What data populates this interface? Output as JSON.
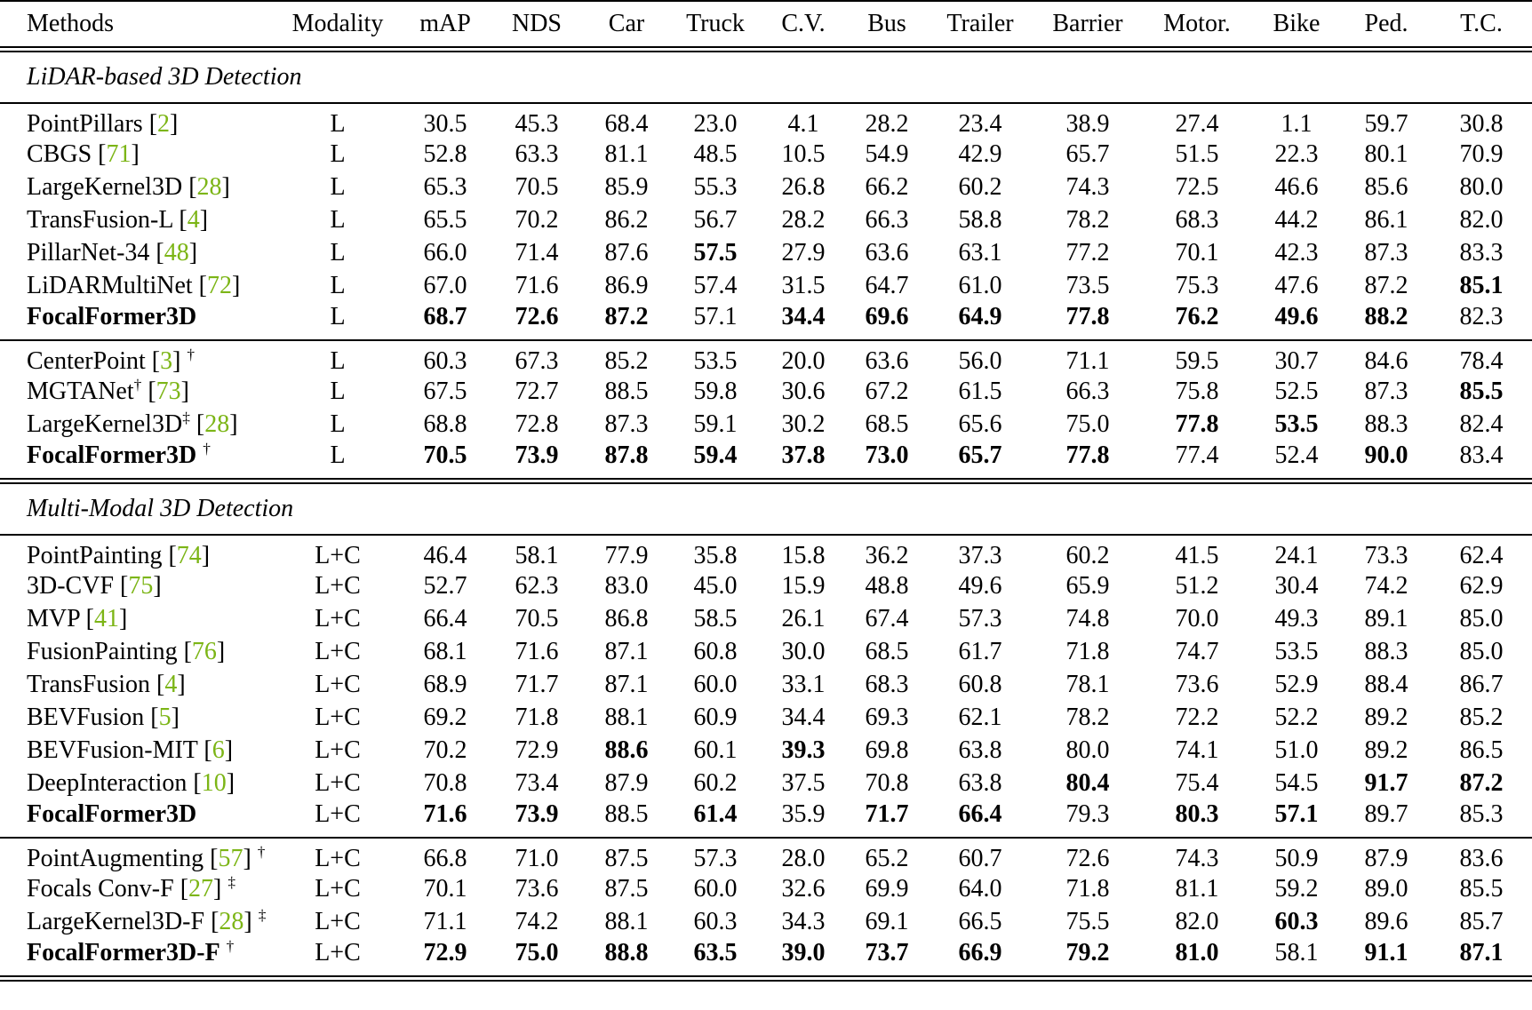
{
  "colors": {
    "citation": "#7CB516"
  },
  "table": {
    "columns": [
      "Methods",
      "Modality",
      "mAP",
      "NDS",
      "Car",
      "Truck",
      "C.V.",
      "Bus",
      "Trailer",
      "Barrier",
      "Motor.",
      "Bike",
      "Ped.",
      "T.C."
    ],
    "sections": [
      {
        "title": "LiDAR-based 3D Detection",
        "groups": [
          {
            "rows": [
              {
                "name": "PointPillars",
                "cite": "2",
                "modality": "L",
                "values": [
                  "30.5",
                  "45.3",
                  "68.4",
                  "23.0",
                  "4.1",
                  "28.2",
                  "23.4",
                  "38.9",
                  "27.4",
                  "1.1",
                  "59.7",
                  "30.8"
                ],
                "bold": []
              },
              {
                "name": "CBGS",
                "cite": "71",
                "modality": "L",
                "values": [
                  "52.8",
                  "63.3",
                  "81.1",
                  "48.5",
                  "10.5",
                  "54.9",
                  "42.9",
                  "65.7",
                  "51.5",
                  "22.3",
                  "80.1",
                  "70.9"
                ],
                "bold": []
              },
              {
                "name": "LargeKernel3D",
                "cite": "28",
                "modality": "L",
                "values": [
                  "65.3",
                  "70.5",
                  "85.9",
                  "55.3",
                  "26.8",
                  "66.2",
                  "60.2",
                  "74.3",
                  "72.5",
                  "46.6",
                  "85.6",
                  "80.0"
                ],
                "bold": []
              },
              {
                "name": "TransFusion-L",
                "cite": "4",
                "modality": "L",
                "values": [
                  "65.5",
                  "70.2",
                  "86.2",
                  "56.7",
                  "28.2",
                  "66.3",
                  "58.8",
                  "78.2",
                  "68.3",
                  "44.2",
                  "86.1",
                  "82.0"
                ],
                "bold": []
              },
              {
                "name": "PillarNet-34",
                "cite": "48",
                "modality": "L",
                "values": [
                  "66.0",
                  "71.4",
                  "87.6",
                  "57.5",
                  "27.9",
                  "63.6",
                  "63.1",
                  "77.2",
                  "70.1",
                  "42.3",
                  "87.3",
                  "83.3"
                ],
                "bold": [
                  3
                ]
              },
              {
                "name": "LiDARMultiNet",
                "cite": "72",
                "modality": "L",
                "values": [
                  "67.0",
                  "71.6",
                  "86.9",
                  "57.4",
                  "31.5",
                  "64.7",
                  "61.0",
                  "73.5",
                  "75.3",
                  "47.6",
                  "87.2",
                  "85.1"
                ],
                "bold": [
                  11
                ]
              },
              {
                "name": "FocalFormer3D",
                "bold_name": true,
                "modality": "L",
                "values": [
                  "68.7",
                  "72.6",
                  "87.2",
                  "57.1",
                  "34.4",
                  "69.6",
                  "64.9",
                  "77.8",
                  "76.2",
                  "49.6",
                  "88.2",
                  "82.3"
                ],
                "bold": [
                  0,
                  1,
                  2,
                  4,
                  5,
                  6,
                  7,
                  8,
                  9,
                  10
                ]
              }
            ]
          },
          {
            "rows": [
              {
                "name": "CenterPoint",
                "cite": "3",
                "sup_after": "†",
                "modality": "L",
                "values": [
                  "60.3",
                  "67.3",
                  "85.2",
                  "53.5",
                  "20.0",
                  "63.6",
                  "56.0",
                  "71.1",
                  "59.5",
                  "30.7",
                  "84.6",
                  "78.4"
                ],
                "bold": []
              },
              {
                "name": "MGTANet",
                "sup_name": "†",
                "cite": "73",
                "modality": "L",
                "values": [
                  "67.5",
                  "72.7",
                  "88.5",
                  "59.8",
                  "30.6",
                  "67.2",
                  "61.5",
                  "66.3",
                  "75.8",
                  "52.5",
                  "87.3",
                  "85.5"
                ],
                "bold": [
                  11
                ]
              },
              {
                "name": "LargeKernel3D",
                "sup_name": "‡",
                "cite": "28",
                "modality": "L",
                "values": [
                  "68.8",
                  "72.8",
                  "87.3",
                  "59.1",
                  "30.2",
                  "68.5",
                  "65.6",
                  "75.0",
                  "77.8",
                  "53.5",
                  "88.3",
                  "82.4"
                ],
                "bold": [
                  8,
                  9
                ]
              },
              {
                "name": "FocalFormer3D",
                "bold_name": true,
                "sup_after": "†",
                "modality": "L",
                "values": [
                  "70.5",
                  "73.9",
                  "87.8",
                  "59.4",
                  "37.8",
                  "73.0",
                  "65.7",
                  "77.8",
                  "77.4",
                  "52.4",
                  "90.0",
                  "83.4"
                ],
                "bold": [
                  0,
                  1,
                  2,
                  3,
                  4,
                  5,
                  6,
                  7,
                  10
                ]
              }
            ]
          }
        ]
      },
      {
        "title": "Multi-Modal 3D Detection",
        "groups": [
          {
            "rows": [
              {
                "name": "PointPainting",
                "cite": "74",
                "modality": "L+C",
                "values": [
                  "46.4",
                  "58.1",
                  "77.9",
                  "35.8",
                  "15.8",
                  "36.2",
                  "37.3",
                  "60.2",
                  "41.5",
                  "24.1",
                  "73.3",
                  "62.4"
                ],
                "bold": []
              },
              {
                "name": "3D-CVF",
                "cite": "75",
                "modality": "L+C",
                "values": [
                  "52.7",
                  "62.3",
                  "83.0",
                  "45.0",
                  "15.9",
                  "48.8",
                  "49.6",
                  "65.9",
                  "51.2",
                  "30.4",
                  "74.2",
                  "62.9"
                ],
                "bold": []
              },
              {
                "name": "MVP",
                "cite": "41",
                "modality": "L+C",
                "values": [
                  "66.4",
                  "70.5",
                  "86.8",
                  "58.5",
                  "26.1",
                  "67.4",
                  "57.3",
                  "74.8",
                  "70.0",
                  "49.3",
                  "89.1",
                  "85.0"
                ],
                "bold": []
              },
              {
                "name": "FusionPainting",
                "cite": "76",
                "modality": "L+C",
                "values": [
                  "68.1",
                  "71.6",
                  "87.1",
                  "60.8",
                  "30.0",
                  "68.5",
                  "61.7",
                  "71.8",
                  "74.7",
                  "53.5",
                  "88.3",
                  "85.0"
                ],
                "bold": []
              },
              {
                "name": "TransFusion",
                "cite": "4",
                "modality": "L+C",
                "values": [
                  "68.9",
                  "71.7",
                  "87.1",
                  "60.0",
                  "33.1",
                  "68.3",
                  "60.8",
                  "78.1",
                  "73.6",
                  "52.9",
                  "88.4",
                  "86.7"
                ],
                "bold": []
              },
              {
                "name": "BEVFusion",
                "cite": "5",
                "modality": "L+C",
                "values": [
                  "69.2",
                  "71.8",
                  "88.1",
                  "60.9",
                  "34.4",
                  "69.3",
                  "62.1",
                  "78.2",
                  "72.2",
                  "52.2",
                  "89.2",
                  "85.2"
                ],
                "bold": []
              },
              {
                "name": "BEVFusion-MIT",
                "cite": "6",
                "modality": "L+C",
                "values": [
                  "70.2",
                  "72.9",
                  "88.6",
                  "60.1",
                  "39.3",
                  "69.8",
                  "63.8",
                  "80.0",
                  "74.1",
                  "51.0",
                  "89.2",
                  "86.5"
                ],
                "bold": [
                  2,
                  4
                ]
              },
              {
                "name": "DeepInteraction",
                "cite": "10",
                "modality": "L+C",
                "values": [
                  "70.8",
                  "73.4",
                  "87.9",
                  "60.2",
                  "37.5",
                  "70.8",
                  "63.8",
                  "80.4",
                  "75.4",
                  "54.5",
                  "91.7",
                  "87.2"
                ],
                "bold": [
                  7,
                  10,
                  11
                ]
              },
              {
                "name": "FocalFormer3D",
                "bold_name": true,
                "modality": "L+C",
                "values": [
                  "71.6",
                  "73.9",
                  "88.5",
                  "61.4",
                  "35.9",
                  "71.7",
                  "66.4",
                  "79.3",
                  "80.3",
                  "57.1",
                  "89.7",
                  "85.3"
                ],
                "bold": [
                  0,
                  1,
                  3,
                  5,
                  6,
                  8,
                  9
                ]
              }
            ]
          },
          {
            "rows": [
              {
                "name": "PointAugmenting",
                "cite": "57",
                "sup_after": "†",
                "modality": "L+C",
                "values": [
                  "66.8",
                  "71.0",
                  "87.5",
                  "57.3",
                  "28.0",
                  "65.2",
                  "60.7",
                  "72.6",
                  "74.3",
                  "50.9",
                  "87.9",
                  "83.6"
                ],
                "bold": []
              },
              {
                "name": "Focals Conv-F",
                "cite": "27",
                "sup_after": "‡",
                "modality": "L+C",
                "values": [
                  "70.1",
                  "73.6",
                  "87.5",
                  "60.0",
                  "32.6",
                  "69.9",
                  "64.0",
                  "71.8",
                  "81.1",
                  "59.2",
                  "89.0",
                  "85.5"
                ],
                "bold": []
              },
              {
                "name": "LargeKernel3D-F",
                "cite": "28",
                "sup_after": "‡",
                "modality": "L+C",
                "values": [
                  "71.1",
                  "74.2",
                  "88.1",
                  "60.3",
                  "34.3",
                  "69.1",
                  "66.5",
                  "75.5",
                  "82.0",
                  "60.3",
                  "89.6",
                  "85.7"
                ],
                "bold": [
                  9
                ]
              },
              {
                "name": "FocalFormer3D-F",
                "bold_name": true,
                "sup_after": "†",
                "modality": "L+C",
                "values": [
                  "72.9",
                  "75.0",
                  "88.8",
                  "63.5",
                  "39.0",
                  "73.7",
                  "66.9",
                  "79.2",
                  "81.0",
                  "58.1",
                  "91.1",
                  "87.1"
                ],
                "bold": [
                  0,
                  1,
                  2,
                  3,
                  4,
                  5,
                  6,
                  7,
                  8,
                  10,
                  11
                ]
              }
            ]
          }
        ]
      }
    ]
  }
}
